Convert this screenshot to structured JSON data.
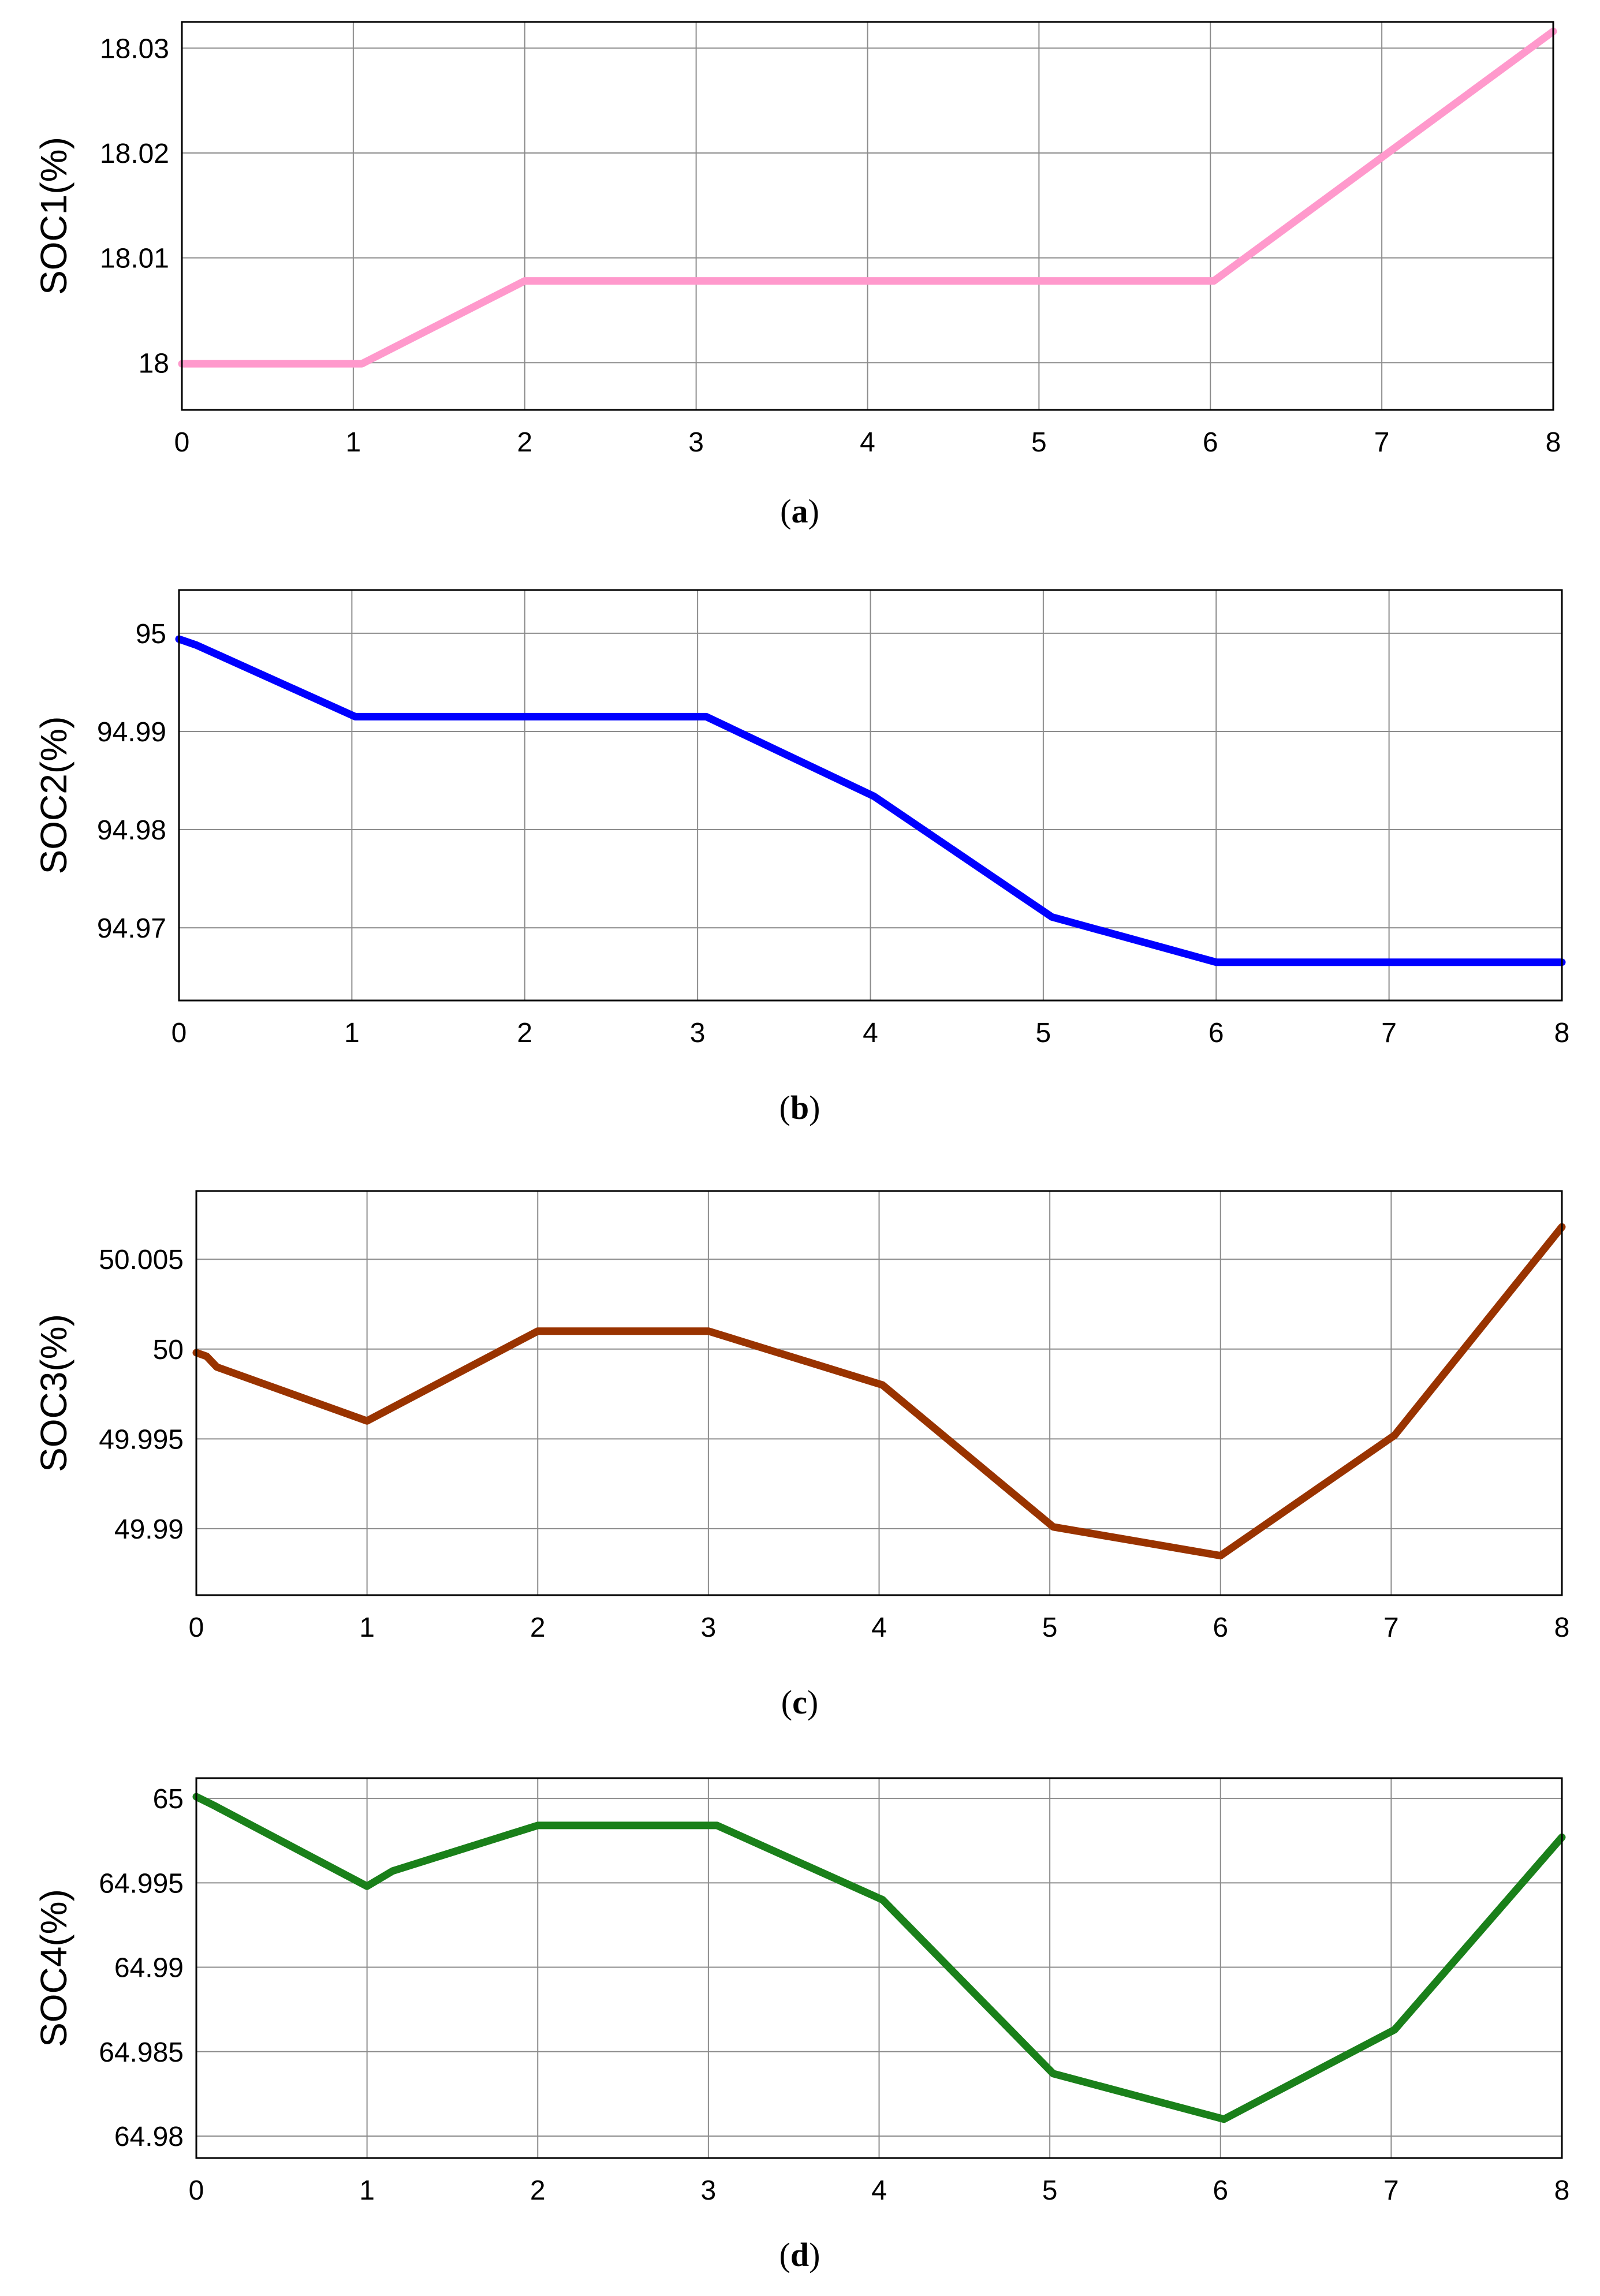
{
  "chart_data": [
    {
      "type": "line",
      "ylabel": "SOC1(%)",
      "caption_letter": "a",
      "color": "#ff99cc",
      "xlim": [
        0,
        8
      ],
      "ylim": [
        17.9955,
        18.0325
      ],
      "xticks": [
        "0",
        "1",
        "2",
        "3",
        "4",
        "5",
        "6",
        "7",
        "8"
      ],
      "yticks": [
        {
          "value": 18,
          "label": "18"
        },
        {
          "value": 18.01,
          "label": "18.01"
        },
        {
          "value": 18.02,
          "label": "18.02"
        },
        {
          "value": 18.03,
          "label": "18.03"
        }
      ],
      "x": [
        0,
        1.05,
        2,
        6.02,
        8
      ],
      "y": [
        17.9999,
        17.9999,
        18.0078,
        18.0078,
        18.0316
      ]
    },
    {
      "type": "line",
      "ylabel": "SOC2(%)",
      "caption_letter": "b",
      "color": "#0000ff",
      "xlim": [
        0,
        8
      ],
      "ylim": [
        94.9626,
        95.0044
      ],
      "xticks": [
        "0",
        "1",
        "2",
        "3",
        "4",
        "5",
        "6",
        "7",
        "8"
      ],
      "yticks": [
        {
          "value": 94.97,
          "label": "94.97"
        },
        {
          "value": 94.98,
          "label": "94.98"
        },
        {
          "value": 94.99,
          "label": "94.99"
        },
        {
          "value": 95,
          "label": "95"
        }
      ],
      "x": [
        0,
        0.1,
        1.02,
        3.05,
        4.02,
        5.05,
        6,
        8
      ],
      "y": [
        94.9994,
        94.9988,
        94.9915,
        94.9915,
        94.9834,
        94.9711,
        94.9665,
        94.9665
      ]
    },
    {
      "type": "line",
      "ylabel": "SOC3(%)",
      "caption_letter": "c",
      "color": "#993300",
      "xlim": [
        0,
        8
      ],
      "ylim": [
        49.9863,
        50.0088
      ],
      "xticks": [
        "0",
        "1",
        "2",
        "3",
        "4",
        "5",
        "6",
        "7",
        "8"
      ],
      "yticks": [
        {
          "value": 49.99,
          "label": "49.99"
        },
        {
          "value": 49.995,
          "label": "49.995"
        },
        {
          "value": 50,
          "label": "50"
        },
        {
          "value": 50.005,
          "label": "50.005"
        }
      ],
      "x": [
        0,
        0.06,
        0.12,
        1,
        2,
        3,
        4.02,
        5.02,
        6,
        7.02,
        8
      ],
      "y": [
        49.9998,
        49.9996,
        49.999,
        49.996,
        50.001,
        50.001,
        49.998,
        49.9901,
        49.9885,
        49.9952,
        50.0068
      ]
    },
    {
      "type": "line",
      "ylabel": "SOC4(%)",
      "caption_letter": "d",
      "color": "#1a801a",
      "xlim": [
        0,
        8
      ],
      "ylim": [
        64.9787,
        65.0012
      ],
      "xticks": [
        "0",
        "1",
        "2",
        "3",
        "4",
        "5",
        "6",
        "7",
        "8"
      ],
      "yticks": [
        {
          "value": 64.98,
          "label": "64.98"
        },
        {
          "value": 64.985,
          "label": "64.985"
        },
        {
          "value": 64.99,
          "label": "64.99"
        },
        {
          "value": 64.995,
          "label": "64.995"
        },
        {
          "value": 65,
          "label": "65"
        }
      ],
      "x": [
        0,
        0.1,
        1,
        1.15,
        2,
        3.05,
        4.02,
        5.02,
        6.02,
        7.02,
        8
      ],
      "y": [
        65.0001,
        64.9996,
        64.9948,
        64.9957,
        64.9984,
        64.9984,
        64.994,
        64.9837,
        64.981,
        64.9863,
        64.9977
      ]
    }
  ]
}
